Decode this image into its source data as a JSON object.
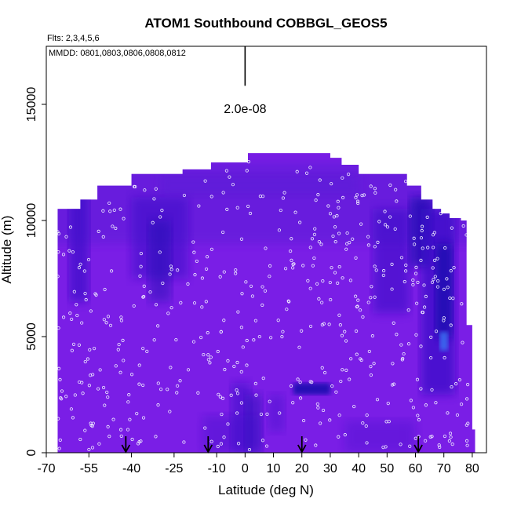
{
  "chart_data": {
    "type": "heatmap",
    "title": "ATOM1 Southbound COBBGL_GEOS5",
    "flights_label": "Flts: 2,3,4,5,6",
    "dates_label": "MMDD: 0801,0803,0806,0808,0812",
    "xlabel": "Latitude (deg N)",
    "ylabel": "Altitude (m)",
    "xlim": [
      -70,
      85
    ],
    "ylim": [
      0,
      17500
    ],
    "x_ticks": [
      -70,
      -55,
      -40,
      -25,
      -10,
      0,
      10,
      20,
      30,
      40,
      50,
      60,
      70,
      80
    ],
    "x_tick_labels": [
      "-70",
      "-55",
      "-40",
      "-25",
      "-10",
      "0",
      "10",
      "20",
      "30",
      "40",
      "50",
      "60",
      "70",
      "80"
    ],
    "y_ticks": [
      0,
      5000,
      10000,
      15000
    ],
    "y_tick_labels": [
      "0",
      "5000",
      "10000",
      "15000"
    ],
    "scale_bar_label": "2.0e-08",
    "scale_bar_x": 0,
    "scale_bar_y": [
      15800,
      17500
    ],
    "arrow_latitudes": [
      -42,
      -13,
      20,
      61
    ],
    "envelope": [
      [
        -66,
        10500
      ],
      [
        -62,
        10500
      ],
      [
        -58,
        10900
      ],
      [
        -52,
        11500
      ],
      [
        -46,
        11500
      ],
      [
        -40,
        12000
      ],
      [
        -30,
        12000
      ],
      [
        -25,
        12000
      ],
      [
        -22,
        12200
      ],
      [
        -17,
        12200
      ],
      [
        -12,
        12500
      ],
      [
        -5,
        12500
      ],
      [
        1,
        12900
      ],
      [
        20,
        12900
      ],
      [
        28,
        12900
      ],
      [
        30,
        12700
      ],
      [
        34,
        12400
      ],
      [
        37,
        12400
      ],
      [
        40,
        12000
      ],
      [
        50,
        12000
      ],
      [
        57,
        11500
      ],
      [
        62,
        10900
      ],
      [
        66,
        10500
      ],
      [
        69,
        10300
      ],
      [
        72,
        10100
      ],
      [
        76,
        10000
      ],
      [
        78,
        5500
      ],
      [
        80,
        1000
      ]
    ],
    "colors": {
      "base": "#7a1ee6",
      "upper": "#5a1fd6",
      "dark": "#3a10c8",
      "deep": "#1e0ab0",
      "bright": "#3b6cf0",
      "points": "#f0f0ff"
    }
  }
}
